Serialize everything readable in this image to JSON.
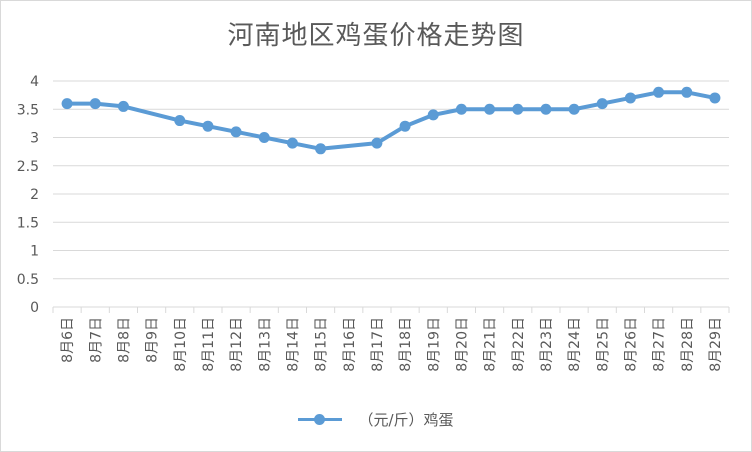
{
  "chart_data": {
    "type": "line",
    "title": "河南地区鸡蛋价格走势图",
    "categories": [
      "8月6日",
      "8月7日",
      "8月8日",
      "8月9日",
      "8月10日",
      "8月11日",
      "8月12日",
      "8月13日",
      "8月14日",
      "8月15日",
      "8月16日",
      "8月17日",
      "8月18日",
      "8月19日",
      "8月20日",
      "8月21日",
      "8月22日",
      "8月23日",
      "8月24日",
      "8月25日",
      "8月26日",
      "8月27日",
      "8月28日",
      "8月29日"
    ],
    "series": [
      {
        "name": "（元/斤）鸡蛋",
        "color": "#5b9bd5",
        "values": [
          3.6,
          3.6,
          3.55,
          null,
          3.3,
          3.2,
          3.1,
          3.0,
          2.9,
          2.8,
          null,
          2.9,
          3.2,
          3.4,
          3.5,
          3.5,
          3.5,
          3.5,
          3.5,
          3.6,
          3.7,
          3.8,
          3.8,
          3.7
        ]
      }
    ],
    "yticks": [
      "0",
      "0.5",
      "1",
      "1.5",
      "2",
      "2.5",
      "3",
      "3.5",
      "4"
    ],
    "ylim": [
      0,
      4
    ],
    "grid": true,
    "legend_position": "bottom"
  }
}
